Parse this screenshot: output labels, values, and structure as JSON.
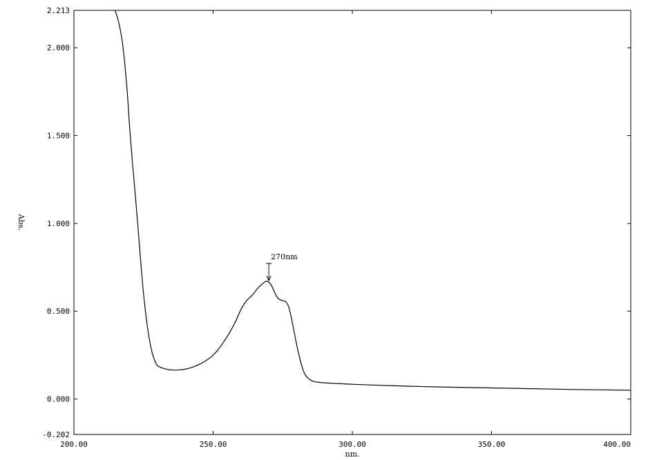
{
  "chart_data": {
    "type": "line",
    "title": "",
    "xlabel": "nm.",
    "ylabel": "Abs.",
    "xlim": [
      200.0,
      400.0
    ],
    "ylim": [
      -0.202,
      2.213
    ],
    "grid": false,
    "x_tick_labels": [
      "200.00",
      "250.00",
      "300.00",
      "350.00",
      "400.00"
    ],
    "x_ticks": [
      200,
      250,
      300,
      350,
      400
    ],
    "y_tick_labels": [
      "-0.202",
      "0.000",
      "0.500",
      "1.000",
      "1.500",
      "2.000",
      "2.213"
    ],
    "y_ticks": [
      -0.202,
      0.0,
      0.5,
      1.0,
      1.5,
      2.0,
      2.213
    ],
    "series": [
      {
        "x": [
          214.0,
          216.0,
          217.5,
          219.0,
          220.0,
          221.0,
          222.0,
          223.0,
          224.0,
          225.0,
          226.0,
          227.0,
          228.0,
          229.0,
          230.0,
          232.0,
          234.0,
          236.0,
          238.0,
          240.0,
          242.0,
          244.0,
          246.0,
          248.0,
          250.0,
          252.0,
          254.0,
          256.0,
          258.0,
          260.0,
          262.0,
          264.0,
          266.0,
          268.0,
          269.0,
          270.0,
          271.0,
          272.0,
          273.0,
          274.0,
          275.0,
          276.0,
          277.0,
          278.0,
          279.0,
          280.0,
          281.0,
          282.0,
          283.0,
          284.0,
          285.0,
          286.0,
          288.0,
          290.0,
          295.0,
          300.0,
          310.0,
          320.0,
          330.0,
          340.0,
          350.0,
          360.0,
          370.0,
          380.0,
          390.0,
          400.0
        ],
        "y": [
          2.25,
          2.15,
          2.02,
          1.78,
          1.55,
          1.35,
          1.17,
          0.98,
          0.78,
          0.6,
          0.46,
          0.35,
          0.27,
          0.22,
          0.19,
          0.175,
          0.167,
          0.165,
          0.166,
          0.17,
          0.178,
          0.19,
          0.205,
          0.225,
          0.25,
          0.285,
          0.33,
          0.38,
          0.44,
          0.51,
          0.56,
          0.59,
          0.63,
          0.66,
          0.67,
          0.665,
          0.645,
          0.61,
          0.58,
          0.565,
          0.56,
          0.555,
          0.53,
          0.47,
          0.39,
          0.31,
          0.24,
          0.18,
          0.14,
          0.12,
          0.108,
          0.1,
          0.095,
          0.092,
          0.088,
          0.084,
          0.078,
          0.073,
          0.069,
          0.066,
          0.063,
          0.06,
          0.057,
          0.054,
          0.052,
          0.05
        ]
      }
    ],
    "annotations": [
      {
        "label": "270nm",
        "x": 270.0,
        "y": 0.67
      }
    ]
  }
}
